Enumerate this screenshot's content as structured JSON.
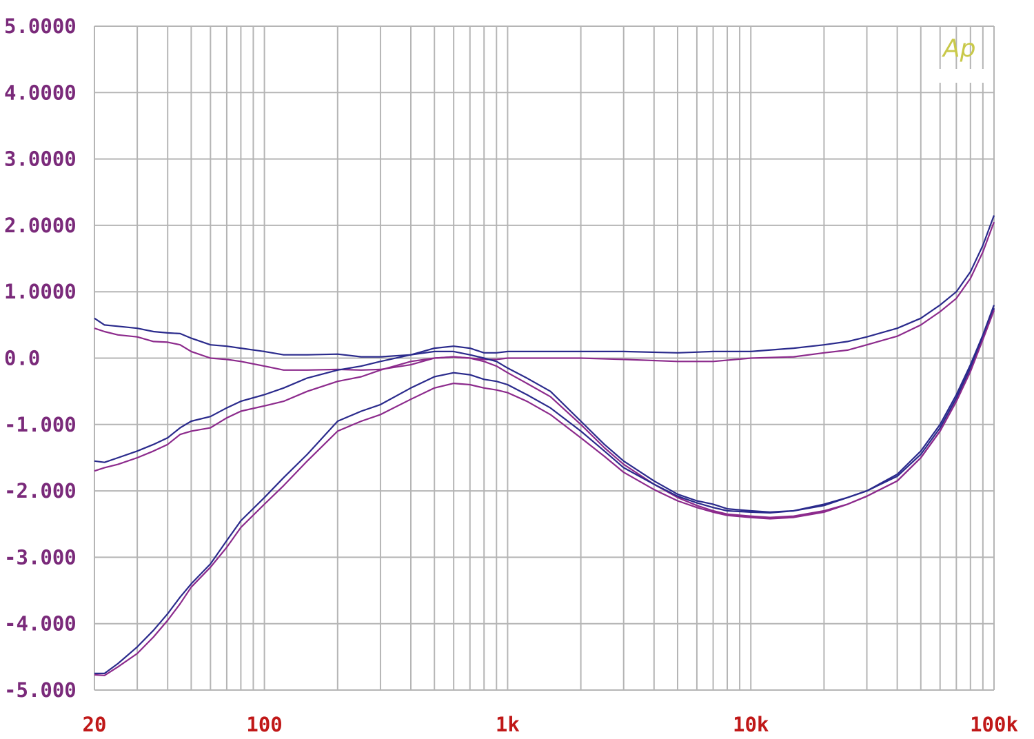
{
  "chart_data": {
    "type": "line",
    "x_scale": "log",
    "xlim": [
      20,
      100000
    ],
    "ylim": [
      -5,
      5
    ],
    "grid": true,
    "title": "",
    "xlabel": "",
    "ylabel": "",
    "x_tick_labels": [
      {
        "value": 20,
        "label": "20"
      },
      {
        "value": 100,
        "label": "100"
      },
      {
        "value": 1000,
        "label": "1k"
      },
      {
        "value": 10000,
        "label": "10k"
      },
      {
        "value": 100000,
        "label": "100k"
      }
    ],
    "y_tick_labels": [
      {
        "value": 5,
        "label": "5.0000"
      },
      {
        "value": 4,
        "label": "4.0000"
      },
      {
        "value": 3,
        "label": "3.0000"
      },
      {
        "value": 2,
        "label": "2.0000"
      },
      {
        "value": 1,
        "label": "1.0000"
      },
      {
        "value": 0,
        "label": "0.0"
      },
      {
        "value": -1,
        "label": "-1.000"
      },
      {
        "value": -2,
        "label": "-2.000"
      },
      {
        "value": -3,
        "label": "-3.000"
      },
      {
        "value": -4,
        "label": "-4.000"
      },
      {
        "value": -5,
        "label": "-5.000"
      }
    ],
    "series": [
      {
        "color": "#2a2a8c",
        "points": [
          [
            20,
            0.6
          ],
          [
            22,
            0.5
          ],
          [
            25,
            0.48
          ],
          [
            30,
            0.45
          ],
          [
            35,
            0.4
          ],
          [
            40,
            0.38
          ],
          [
            45,
            0.37
          ],
          [
            50,
            0.3
          ],
          [
            60,
            0.2
          ],
          [
            70,
            0.18
          ],
          [
            80,
            0.15
          ],
          [
            100,
            0.1
          ],
          [
            120,
            0.05
          ],
          [
            150,
            0.05
          ],
          [
            200,
            0.06
          ],
          [
            250,
            0.02
          ],
          [
            300,
            0.02
          ],
          [
            400,
            0.05
          ],
          [
            500,
            0.15
          ],
          [
            600,
            0.18
          ],
          [
            700,
            0.15
          ],
          [
            800,
            0.08
          ],
          [
            900,
            0.08
          ],
          [
            1000,
            0.1
          ],
          [
            1500,
            0.1
          ],
          [
            2000,
            0.1
          ],
          [
            3000,
            0.1
          ],
          [
            5000,
            0.08
          ],
          [
            7000,
            0.1
          ],
          [
            10000,
            0.1
          ],
          [
            15000,
            0.15
          ],
          [
            20000,
            0.2
          ],
          [
            25000,
            0.25
          ],
          [
            30000,
            0.32
          ],
          [
            40000,
            0.45
          ],
          [
            50000,
            0.6
          ],
          [
            60000,
            0.8
          ],
          [
            70000,
            1.0
          ],
          [
            80000,
            1.3
          ],
          [
            90000,
            1.7
          ],
          [
            100000,
            2.15
          ]
        ]
      },
      {
        "color": "#8c2a8c",
        "points": [
          [
            20,
            0.45
          ],
          [
            22,
            0.4
          ],
          [
            25,
            0.35
          ],
          [
            30,
            0.32
          ],
          [
            35,
            0.25
          ],
          [
            40,
            0.24
          ],
          [
            45,
            0.2
          ],
          [
            50,
            0.1
          ],
          [
            60,
            0.0
          ],
          [
            70,
            -0.02
          ],
          [
            80,
            -0.05
          ],
          [
            100,
            -0.12
          ],
          [
            120,
            -0.18
          ],
          [
            150,
            -0.18
          ],
          [
            200,
            -0.17
          ],
          [
            250,
            -0.18
          ],
          [
            300,
            -0.17
          ],
          [
            400,
            -0.1
          ],
          [
            500,
            0.0
          ],
          [
            600,
            0.02
          ],
          [
            700,
            0.0
          ],
          [
            800,
            -0.02
          ],
          [
            900,
            -0.02
          ],
          [
            1000,
            0.0
          ],
          [
            1500,
            0.0
          ],
          [
            2000,
            0.0
          ],
          [
            3000,
            -0.02
          ],
          [
            5000,
            -0.05
          ],
          [
            7000,
            -0.05
          ],
          [
            10000,
            0.0
          ],
          [
            15000,
            0.02
          ],
          [
            20000,
            0.08
          ],
          [
            25000,
            0.12
          ],
          [
            30000,
            0.2
          ],
          [
            40000,
            0.33
          ],
          [
            50000,
            0.5
          ],
          [
            60000,
            0.7
          ],
          [
            70000,
            0.9
          ],
          [
            80000,
            1.2
          ],
          [
            90000,
            1.6
          ],
          [
            100000,
            2.05
          ]
        ]
      },
      {
        "color": "#2a2a8c",
        "points": [
          [
            20,
            -1.55
          ],
          [
            22,
            -1.57
          ],
          [
            25,
            -1.5
          ],
          [
            30,
            -1.4
          ],
          [
            35,
            -1.3
          ],
          [
            40,
            -1.2
          ],
          [
            45,
            -1.05
          ],
          [
            50,
            -0.95
          ],
          [
            60,
            -0.88
          ],
          [
            70,
            -0.75
          ],
          [
            80,
            -0.65
          ],
          [
            100,
            -0.55
          ],
          [
            120,
            -0.45
          ],
          [
            150,
            -0.3
          ],
          [
            200,
            -0.18
          ],
          [
            250,
            -0.12
          ],
          [
            300,
            -0.05
          ],
          [
            400,
            0.05
          ],
          [
            500,
            0.1
          ],
          [
            600,
            0.1
          ],
          [
            700,
            0.05
          ],
          [
            800,
            0.0
          ],
          [
            900,
            -0.05
          ],
          [
            1000,
            -0.15
          ],
          [
            1200,
            -0.3
          ],
          [
            1500,
            -0.5
          ],
          [
            2000,
            -0.95
          ],
          [
            2500,
            -1.3
          ],
          [
            3000,
            -1.55
          ],
          [
            4000,
            -1.85
          ],
          [
            5000,
            -2.05
          ],
          [
            6000,
            -2.15
          ],
          [
            7000,
            -2.2
          ],
          [
            8000,
            -2.27
          ],
          [
            10000,
            -2.3
          ],
          [
            12000,
            -2.32
          ],
          [
            15000,
            -2.3
          ],
          [
            20000,
            -2.2
          ],
          [
            25000,
            -2.1
          ],
          [
            30000,
            -2.0
          ],
          [
            40000,
            -1.75
          ],
          [
            50000,
            -1.4
          ],
          [
            60000,
            -1.0
          ],
          [
            70000,
            -0.55
          ],
          [
            80000,
            -0.1
          ],
          [
            90000,
            0.35
          ],
          [
            100000,
            0.8
          ]
        ]
      },
      {
        "color": "#8c2a8c",
        "points": [
          [
            20,
            -1.7
          ],
          [
            22,
            -1.65
          ],
          [
            25,
            -1.6
          ],
          [
            30,
            -1.5
          ],
          [
            35,
            -1.4
          ],
          [
            40,
            -1.3
          ],
          [
            45,
            -1.15
          ],
          [
            50,
            -1.1
          ],
          [
            60,
            -1.05
          ],
          [
            70,
            -0.9
          ],
          [
            80,
            -0.8
          ],
          [
            100,
            -0.72
          ],
          [
            120,
            -0.65
          ],
          [
            150,
            -0.5
          ],
          [
            200,
            -0.35
          ],
          [
            250,
            -0.28
          ],
          [
            300,
            -0.18
          ],
          [
            400,
            -0.05
          ],
          [
            500,
            0.0
          ],
          [
            600,
            0.02
          ],
          [
            700,
            0.0
          ],
          [
            800,
            -0.05
          ],
          [
            900,
            -0.12
          ],
          [
            1000,
            -0.22
          ],
          [
            1200,
            -0.38
          ],
          [
            1500,
            -0.58
          ],
          [
            2000,
            -1.0
          ],
          [
            2500,
            -1.35
          ],
          [
            3000,
            -1.6
          ],
          [
            4000,
            -1.9
          ],
          [
            5000,
            -2.1
          ],
          [
            6000,
            -2.22
          ],
          [
            7000,
            -2.3
          ],
          [
            8000,
            -2.35
          ],
          [
            10000,
            -2.38
          ],
          [
            12000,
            -2.4
          ],
          [
            15000,
            -2.38
          ],
          [
            20000,
            -2.3
          ],
          [
            25000,
            -2.2
          ],
          [
            30000,
            -2.08
          ],
          [
            40000,
            -1.85
          ],
          [
            50000,
            -1.5
          ],
          [
            60000,
            -1.1
          ],
          [
            70000,
            -0.65
          ],
          [
            80000,
            -0.2
          ],
          [
            90000,
            0.3
          ],
          [
            100000,
            0.75
          ]
        ]
      },
      {
        "color": "#2a2a8c",
        "points": [
          [
            20,
            -4.75
          ],
          [
            22,
            -4.75
          ],
          [
            25,
            -4.6
          ],
          [
            30,
            -4.35
          ],
          [
            35,
            -4.1
          ],
          [
            40,
            -3.85
          ],
          [
            45,
            -3.6
          ],
          [
            50,
            -3.4
          ],
          [
            60,
            -3.1
          ],
          [
            70,
            -2.75
          ],
          [
            80,
            -2.45
          ],
          [
            100,
            -2.1
          ],
          [
            120,
            -1.8
          ],
          [
            150,
            -1.45
          ],
          [
            200,
            -0.95
          ],
          [
            250,
            -0.8
          ],
          [
            300,
            -0.7
          ],
          [
            400,
            -0.45
          ],
          [
            500,
            -0.28
          ],
          [
            600,
            -0.22
          ],
          [
            700,
            -0.25
          ],
          [
            800,
            -0.32
          ],
          [
            900,
            -0.35
          ],
          [
            1000,
            -0.4
          ],
          [
            1200,
            -0.55
          ],
          [
            1500,
            -0.75
          ],
          [
            2000,
            -1.1
          ],
          [
            2500,
            -1.4
          ],
          [
            3000,
            -1.65
          ],
          [
            4000,
            -1.9
          ],
          [
            5000,
            -2.08
          ],
          [
            6000,
            -2.18
          ],
          [
            7000,
            -2.25
          ],
          [
            8000,
            -2.3
          ],
          [
            10000,
            -2.32
          ],
          [
            12000,
            -2.33
          ],
          [
            15000,
            -2.3
          ],
          [
            20000,
            -2.22
          ],
          [
            25000,
            -2.1
          ],
          [
            30000,
            -2.0
          ],
          [
            40000,
            -1.78
          ],
          [
            50000,
            -1.45
          ],
          [
            60000,
            -1.05
          ],
          [
            70000,
            -0.6
          ],
          [
            80000,
            -0.15
          ],
          [
            90000,
            0.3
          ],
          [
            100000,
            0.75
          ]
        ]
      },
      {
        "color": "#8c2a8c",
        "points": [
          [
            20,
            -4.77
          ],
          [
            22,
            -4.78
          ],
          [
            25,
            -4.65
          ],
          [
            30,
            -4.45
          ],
          [
            35,
            -4.2
          ],
          [
            40,
            -3.95
          ],
          [
            45,
            -3.7
          ],
          [
            50,
            -3.45
          ],
          [
            60,
            -3.15
          ],
          [
            70,
            -2.85
          ],
          [
            80,
            -2.55
          ],
          [
            100,
            -2.2
          ],
          [
            120,
            -1.92
          ],
          [
            150,
            -1.55
          ],
          [
            200,
            -1.1
          ],
          [
            250,
            -0.95
          ],
          [
            300,
            -0.85
          ],
          [
            400,
            -0.62
          ],
          [
            500,
            -0.45
          ],
          [
            600,
            -0.38
          ],
          [
            700,
            -0.4
          ],
          [
            800,
            -0.45
          ],
          [
            900,
            -0.48
          ],
          [
            1000,
            -0.52
          ],
          [
            1200,
            -0.65
          ],
          [
            1500,
            -0.85
          ],
          [
            2000,
            -1.2
          ],
          [
            2500,
            -1.48
          ],
          [
            3000,
            -1.72
          ],
          [
            4000,
            -1.98
          ],
          [
            5000,
            -2.15
          ],
          [
            6000,
            -2.25
          ],
          [
            7000,
            -2.32
          ],
          [
            8000,
            -2.37
          ],
          [
            10000,
            -2.4
          ],
          [
            12000,
            -2.42
          ],
          [
            15000,
            -2.4
          ],
          [
            20000,
            -2.32
          ],
          [
            25000,
            -2.2
          ],
          [
            30000,
            -2.08
          ],
          [
            40000,
            -1.85
          ],
          [
            50000,
            -1.5
          ],
          [
            60000,
            -1.1
          ],
          [
            70000,
            -0.65
          ],
          [
            80000,
            -0.2
          ],
          [
            90000,
            0.28
          ],
          [
            100000,
            0.72
          ]
        ]
      }
    ]
  },
  "logo_text": "Ap",
  "colors": {
    "grid": "#b5b5b5",
    "y_label": "#7a2a7a",
    "x_label": "#c01818",
    "logo": "#c9c94a"
  }
}
